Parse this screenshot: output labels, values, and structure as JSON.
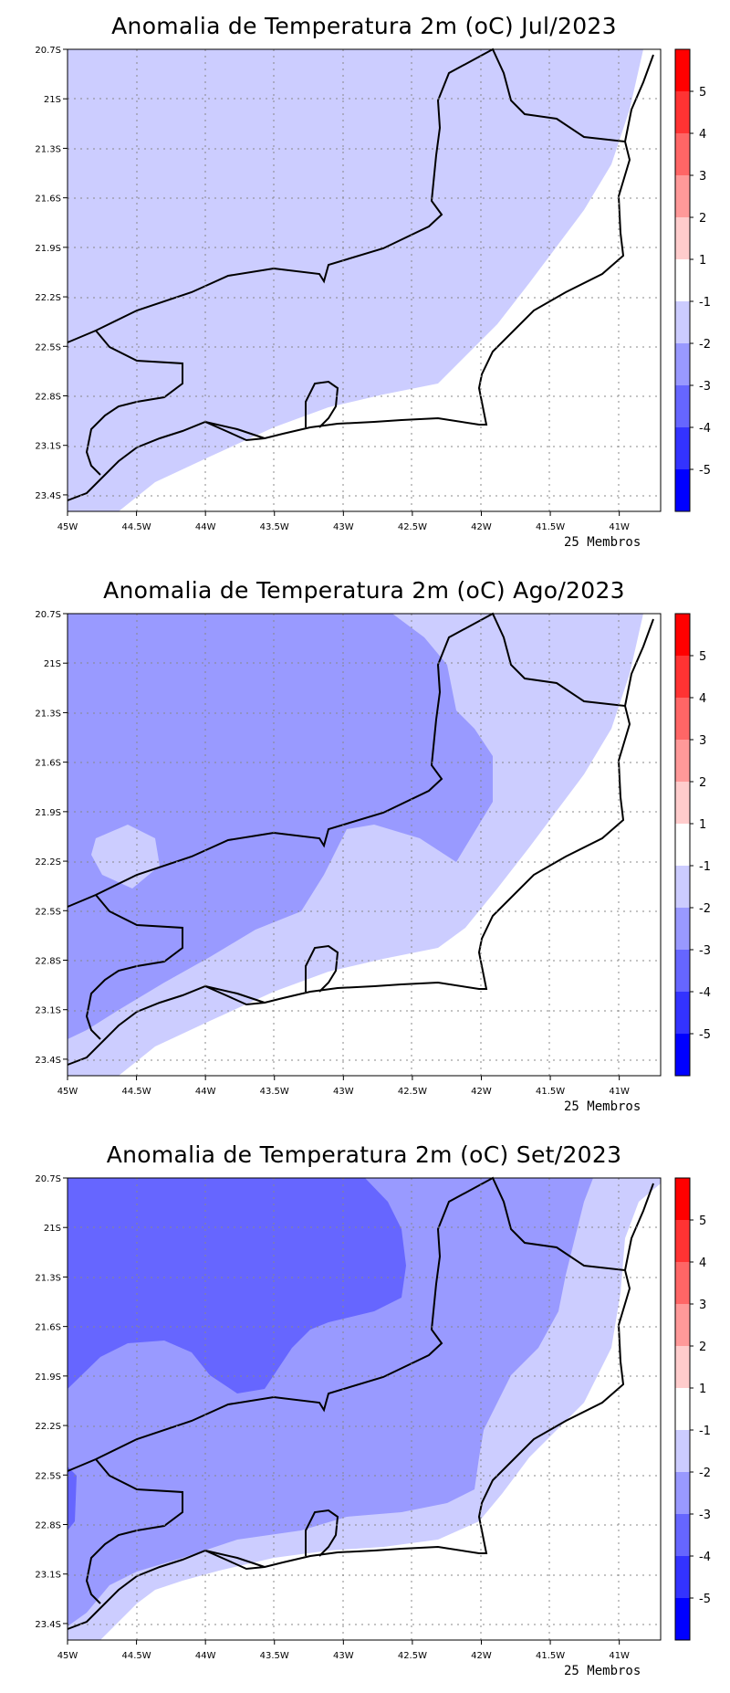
{
  "figure": {
    "members_label": "25 Membros"
  },
  "chart_data": [
    {
      "type": "heatmap",
      "title": "Anomalia de Temperatura 2m (oC) Jul/2023",
      "x_ticks": [
        "45W",
        "44.5W",
        "44W",
        "43.5W",
        "43W",
        "42.5W",
        "42W",
        "41.5W",
        "41W"
      ],
      "y_ticks": [
        "20.7S",
        "21S",
        "21.3S",
        "21.6S",
        "21.9S",
        "22.2S",
        "22.5S",
        "22.8S",
        "23.1S",
        "23.4S"
      ],
      "xlim": [
        -45.0,
        -40.7
      ],
      "ylim": [
        -23.5,
        -20.7
      ],
      "colorbar_levels": [
        "5",
        "4",
        "3",
        "2",
        "1",
        "-1",
        "-2",
        "-3",
        "-4",
        "-5"
      ],
      "members_label": "25 Membros",
      "anomaly_classes": [
        "-1 to -2 (most of domain)",
        "-1 to 1 (coastal strip)"
      ]
    },
    {
      "type": "heatmap",
      "title": "Anomalia de Temperatura 2m (oC) Ago/2023",
      "x_ticks": [
        "45W",
        "44.5W",
        "44W",
        "43.5W",
        "43W",
        "42.5W",
        "42W",
        "41.5W",
        "41W"
      ],
      "y_ticks": [
        "20.7S",
        "21S",
        "21.3S",
        "21.6S",
        "21.9S",
        "22.2S",
        "22.5S",
        "22.8S",
        "23.1S",
        "23.4S"
      ],
      "xlim": [
        -45.0,
        -40.7
      ],
      "ylim": [
        -23.5,
        -20.7
      ],
      "colorbar_levels": [
        "5",
        "4",
        "3",
        "2",
        "1",
        "-1",
        "-2",
        "-3",
        "-4",
        "-5"
      ],
      "members_label": "25 Membros",
      "anomaly_classes": [
        "-2 to -3 (west and north)",
        "-1 to -2 (central band)",
        "-1 to 1 (coastal strip)"
      ]
    },
    {
      "type": "heatmap",
      "title": "Anomalia de Temperatura 2m (oC) Set/2023",
      "x_ticks": [
        "45W",
        "44.5W",
        "44W",
        "43.5W",
        "43W",
        "42.5W",
        "42W",
        "41.5W",
        "41W"
      ],
      "y_ticks": [
        "20.7S",
        "21S",
        "21.3S",
        "21.6S",
        "21.9S",
        "22.2S",
        "22.5S",
        "22.8S",
        "23.1S",
        "23.4S"
      ],
      "xlim": [
        -45.0,
        -40.7
      ],
      "ylim": [
        -23.5,
        -20.7
      ],
      "colorbar_levels": [
        "5",
        "4",
        "3",
        "2",
        "1",
        "-1",
        "-2",
        "-3",
        "-4",
        "-5"
      ],
      "members_label": "25 Membros",
      "anomaly_classes": [
        "-3 to -4 (northwest)",
        "-2 to -3 (central)",
        "-1 to -2 (southeast band)",
        "-1 to 1 (coastal strip)"
      ]
    }
  ]
}
